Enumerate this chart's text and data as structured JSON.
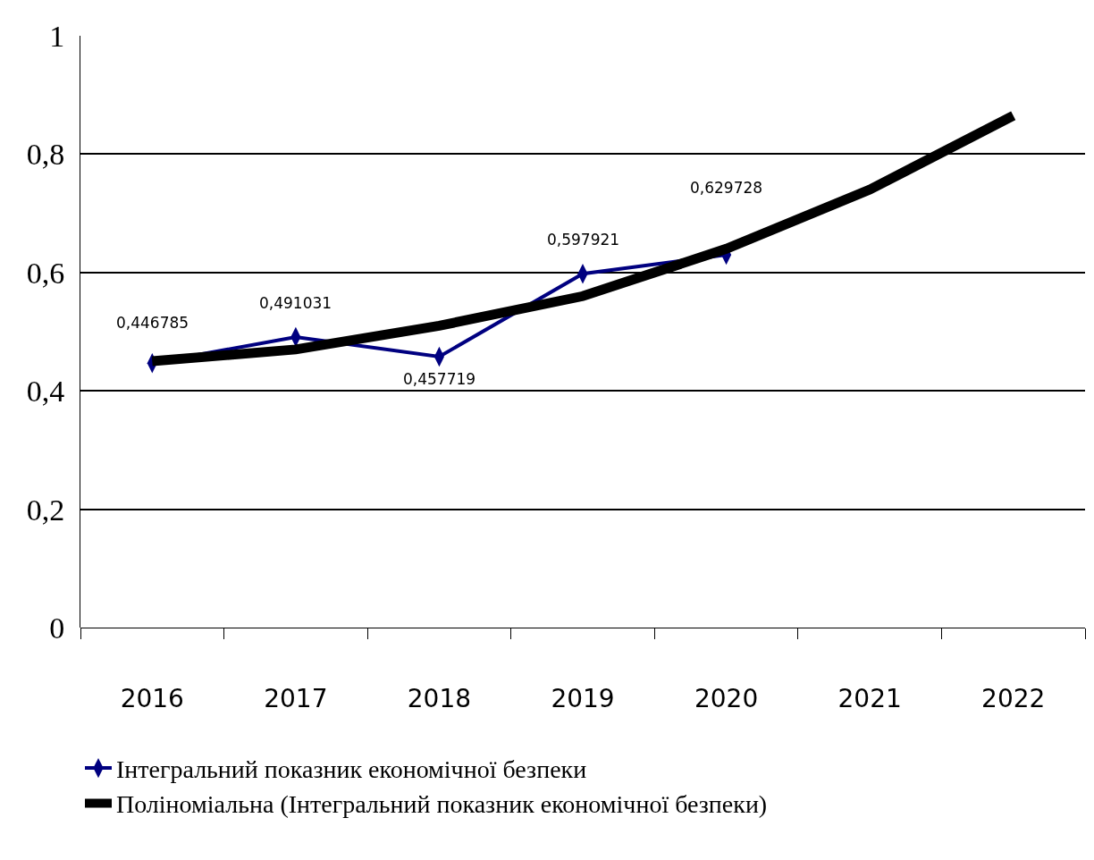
{
  "chart_data": {
    "type": "line",
    "categories": [
      "2016",
      "2017",
      "2018",
      "2019",
      "2020",
      "2021",
      "2022"
    ],
    "series": [
      {
        "name": "Інтегральний показник економічної безпеки",
        "color": "#000080",
        "marker": "diamond",
        "values": [
          0.446785,
          0.491031,
          0.457719,
          0.597921,
          0.629728,
          null,
          null
        ],
        "value_labels": [
          "0,446785",
          "0,491031",
          "0,457719",
          "0,597921",
          "0,629728",
          null,
          null
        ]
      },
      {
        "name": "Поліноміальна (Інтегральний показник економічної безпеки)",
        "type": "line",
        "color": "#000000",
        "marker": "none",
        "values": [
          0.45,
          0.47,
          0.51,
          0.56,
          0.64,
          0.74,
          0.865
        ]
      }
    ],
    "ylim": [
      0,
      1
    ],
    "yticks": [
      {
        "value": 0,
        "label": "0"
      },
      {
        "value": 0.2,
        "label": "0,2"
      },
      {
        "value": 0.4,
        "label": "0,4"
      },
      {
        "value": 0.6,
        "label": "0,6"
      },
      {
        "value": 0.8,
        "label": "0,8"
      },
      {
        "value": 1,
        "label": "1"
      }
    ],
    "grid": "y",
    "legend": "bottom"
  }
}
